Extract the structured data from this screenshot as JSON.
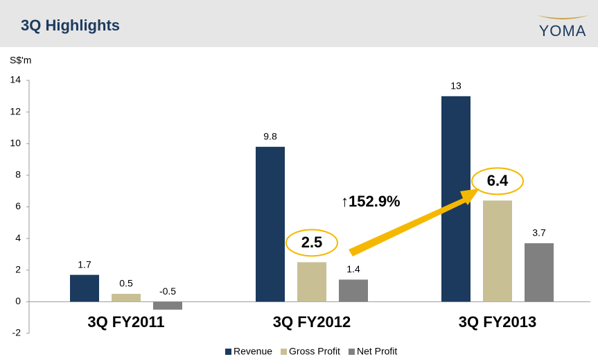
{
  "title": "3Q Highlights",
  "logo": "YOMA",
  "chart_data": {
    "type": "bar",
    "y_label": "S$'m",
    "categories": [
      "3Q FY2011",
      "3Q FY2012",
      "3Q FY2013"
    ],
    "series": [
      {
        "name": "Revenue",
        "color": "#1b3a5e",
        "values": [
          1.7,
          9.8,
          13
        ]
      },
      {
        "name": "Gross Profit",
        "color": "#c8bf95",
        "values": [
          0.5,
          2.5,
          6.4
        ]
      },
      {
        "name": "Net Profit",
        "color": "#808080",
        "values": [
          -0.5,
          1.4,
          3.7
        ]
      }
    ],
    "ylim": [
      -2,
      14
    ],
    "yticks": [
      -2,
      0,
      2,
      4,
      6,
      8,
      10,
      12,
      14
    ],
    "annotation": "↑152.9%",
    "legend": "bottom"
  }
}
